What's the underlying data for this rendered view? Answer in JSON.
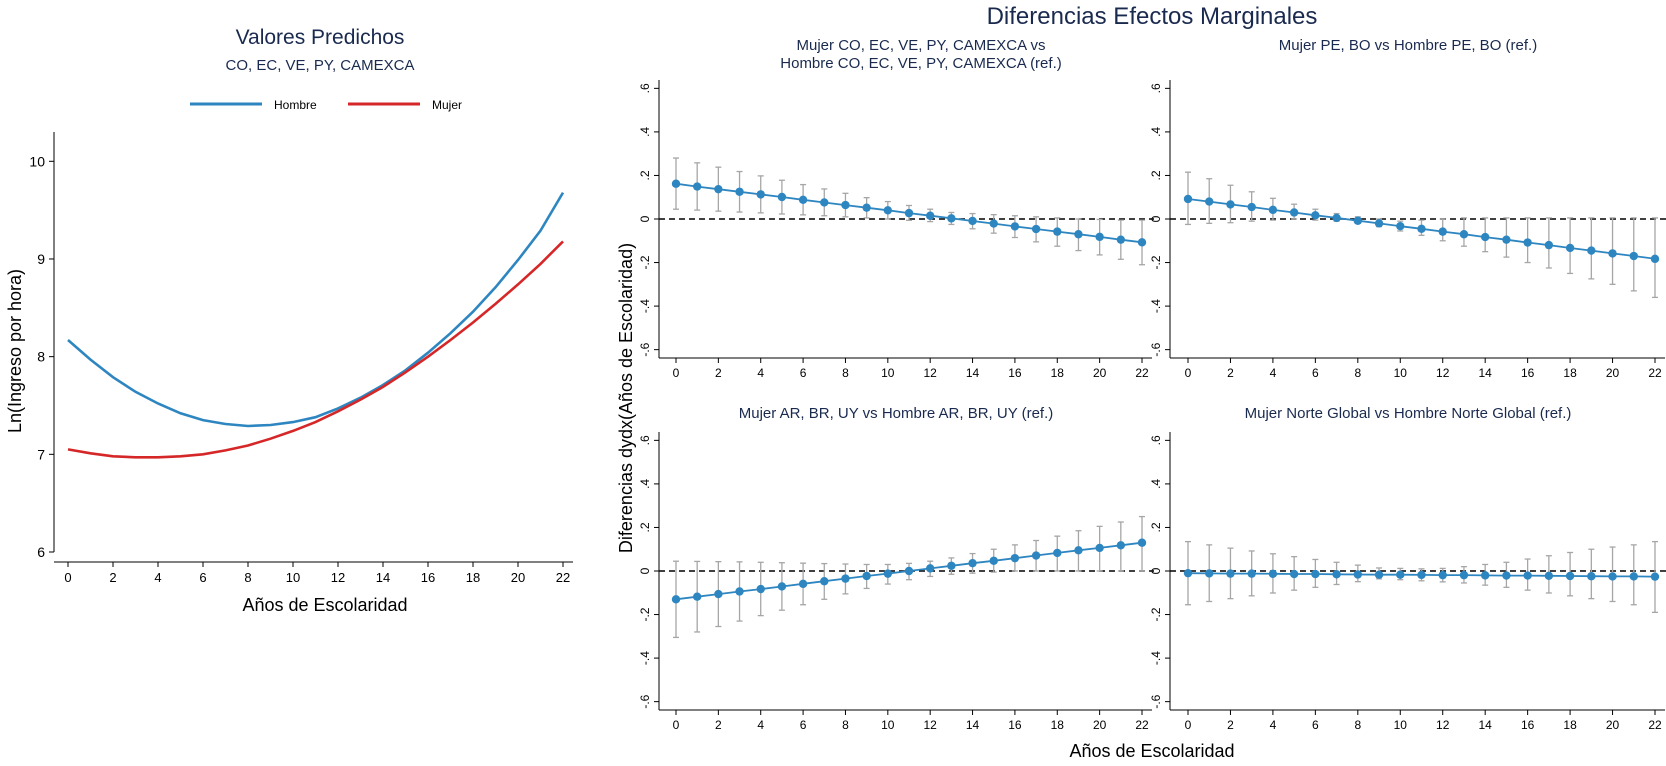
{
  "colors": {
    "hombre": "#2e86c1",
    "mujer": "#d62728",
    "marker": "#2e86c1",
    "ci": "#a6a6a6",
    "axis": "#000000",
    "title": "#1a2a4f"
  },
  "chart_data": [
    {
      "type": "line",
      "title": "Valores Predichos",
      "subtitle": "CO, EC, VE, PY, CAMEXCA",
      "xlabel": "Años de Escolaridad",
      "ylabel": "Ln(Ingreso por hora)",
      "xlim": [
        0,
        22
      ],
      "ylim": [
        6,
        10.3
      ],
      "xticks": [
        0,
        2,
        4,
        6,
        8,
        10,
        12,
        14,
        16,
        18,
        20,
        22
      ],
      "yticks": [
        6,
        7,
        8,
        9,
        10
      ],
      "legend": "top",
      "grid": false,
      "x": [
        0,
        1,
        2,
        3,
        4,
        5,
        6,
        7,
        8,
        9,
        10,
        11,
        12,
        13,
        14,
        15,
        16,
        17,
        18,
        19,
        20,
        21,
        22
      ],
      "series": [
        {
          "name": "Hombre",
          "color": "#2e86c1",
          "values": [
            8.17,
            7.97,
            7.79,
            7.64,
            7.52,
            7.42,
            7.35,
            7.31,
            7.29,
            7.3,
            7.33,
            7.38,
            7.47,
            7.58,
            7.71,
            7.86,
            8.04,
            8.24,
            8.46,
            8.71,
            8.99,
            9.29,
            9.68
          ]
        },
        {
          "name": "Mujer",
          "color": "#d62728",
          "values": [
            7.05,
            7.01,
            6.98,
            6.97,
            6.97,
            6.98,
            7.0,
            7.04,
            7.09,
            7.16,
            7.24,
            7.33,
            7.44,
            7.56,
            7.69,
            7.84,
            8.0,
            8.17,
            8.35,
            8.54,
            8.74,
            8.95,
            9.18
          ]
        }
      ]
    },
    {
      "type": "scatter",
      "title": "Mujer CO, EC, VE, PY, CAMEXCA vs",
      "title2": "Hombre CO, EC, VE, PY, CAMEXCA (ref.)",
      "xlim": [
        0,
        22
      ],
      "ylim": [
        -0.62,
        0.62
      ],
      "xticks": [
        0,
        2,
        4,
        6,
        8,
        10,
        12,
        14,
        16,
        18,
        20,
        22
      ],
      "yticks": [
        -0.6,
        -0.4,
        -0.2,
        0,
        0.2,
        0.4,
        0.6
      ],
      "ytick_labels": [
        "-.6",
        "-.4",
        "-.2",
        "0",
        ".2",
        ".4",
        ".6"
      ],
      "reference_line": 0,
      "x": [
        0,
        1,
        2,
        3,
        4,
        5,
        6,
        7,
        8,
        9,
        10,
        11,
        12,
        13,
        14,
        15,
        16,
        17,
        18,
        19,
        20,
        21,
        22
      ],
      "values": [
        0.162,
        0.149,
        0.137,
        0.125,
        0.113,
        0.101,
        0.088,
        0.076,
        0.064,
        0.052,
        0.04,
        0.027,
        0.015,
        0.003,
        -0.009,
        -0.021,
        -0.034,
        -0.046,
        -0.058,
        -0.07,
        -0.082,
        -0.095,
        -0.107
      ],
      "ci_low": [
        0.045,
        0.041,
        0.036,
        0.032,
        0.028,
        0.023,
        0.019,
        0.015,
        0.01,
        0.005,
        0.0,
        -0.006,
        -0.012,
        -0.025,
        -0.045,
        -0.065,
        -0.085,
        -0.105,
        -0.125,
        -0.145,
        -0.165,
        -0.185,
        -0.21
      ],
      "ci_high": [
        0.28,
        0.258,
        0.238,
        0.218,
        0.198,
        0.178,
        0.158,
        0.138,
        0.118,
        0.098,
        0.08,
        0.062,
        0.045,
        0.03,
        0.025,
        0.02,
        0.015,
        0.01,
        0.005,
        0.0,
        -0.002,
        -0.005,
        -0.005
      ]
    },
    {
      "type": "scatter",
      "title": "Mujer PE, BO vs Hombre PE, BO (ref.)",
      "xlim": [
        0,
        22
      ],
      "ylim": [
        -0.62,
        0.62
      ],
      "xticks": [
        0,
        2,
        4,
        6,
        8,
        10,
        12,
        14,
        16,
        18,
        20,
        22
      ],
      "yticks": [
        -0.6,
        -0.4,
        -0.2,
        0,
        0.2,
        0.4,
        0.6
      ],
      "ytick_labels": [
        "-.6",
        "-.4",
        "-.2",
        "0",
        ".2",
        ".4",
        ".6"
      ],
      "reference_line": 0,
      "x": [
        0,
        1,
        2,
        3,
        4,
        5,
        6,
        7,
        8,
        9,
        10,
        11,
        12,
        13,
        14,
        15,
        16,
        17,
        18,
        19,
        20,
        21,
        22
      ],
      "values": [
        0.092,
        0.08,
        0.067,
        0.055,
        0.042,
        0.03,
        0.017,
        0.005,
        -0.008,
        -0.02,
        -0.033,
        -0.045,
        -0.058,
        -0.07,
        -0.083,
        -0.095,
        -0.108,
        -0.12,
        -0.133,
        -0.145,
        -0.158,
        -0.17,
        -0.183
      ],
      "ci_low": [
        -0.025,
        -0.02,
        -0.017,
        -0.01,
        -0.005,
        0.0,
        -0.005,
        -0.01,
        -0.02,
        -0.035,
        -0.055,
        -0.075,
        -0.1,
        -0.125,
        -0.15,
        -0.175,
        -0.2,
        -0.225,
        -0.25,
        -0.275,
        -0.3,
        -0.33,
        -0.36
      ],
      "ci_high": [
        0.215,
        0.185,
        0.155,
        0.125,
        0.095,
        0.068,
        0.045,
        0.025,
        0.01,
        0.0,
        -0.01,
        -0.005,
        0.0,
        0.005,
        0.005,
        0.005,
        0.005,
        0.005,
        0.005,
        0.005,
        0.005,
        0.005,
        0.005
      ]
    },
    {
      "type": "scatter",
      "title": "Mujer AR, BR, UY vs Hombre AR, BR, UY (ref.)",
      "xlim": [
        0,
        22
      ],
      "ylim": [
        -0.62,
        0.62
      ],
      "xticks": [
        0,
        2,
        4,
        6,
        8,
        10,
        12,
        14,
        16,
        18,
        20,
        22
      ],
      "yticks": [
        -0.6,
        -0.4,
        -0.2,
        0,
        0.2,
        0.4,
        0.6
      ],
      "ytick_labels": [
        "-.6",
        "-.4",
        "-.2",
        "0",
        ".2",
        ".4",
        ".6"
      ],
      "reference_line": 0,
      "x": [
        0,
        1,
        2,
        3,
        4,
        5,
        6,
        7,
        8,
        9,
        10,
        11,
        12,
        13,
        14,
        15,
        16,
        17,
        18,
        19,
        20,
        21,
        22
      ],
      "values": [
        -0.13,
        -0.118,
        -0.106,
        -0.094,
        -0.083,
        -0.071,
        -0.059,
        -0.047,
        -0.035,
        -0.023,
        -0.012,
        0.0,
        0.012,
        0.024,
        0.036,
        0.047,
        0.059,
        0.071,
        0.083,
        0.095,
        0.106,
        0.118,
        0.13
      ],
      "ci_low": [
        -0.305,
        -0.28,
        -0.255,
        -0.23,
        -0.205,
        -0.18,
        -0.155,
        -0.13,
        -0.105,
        -0.08,
        -0.06,
        -0.04,
        -0.025,
        -0.015,
        -0.01,
        -0.005,
        0.0,
        0.0,
        0.0,
        0.0,
        0.0,
        0.0,
        0.0
      ],
      "ci_high": [
        0.045,
        0.044,
        0.043,
        0.042,
        0.04,
        0.038,
        0.036,
        0.034,
        0.032,
        0.03,
        0.03,
        0.035,
        0.045,
        0.06,
        0.08,
        0.1,
        0.12,
        0.14,
        0.16,
        0.185,
        0.205,
        0.225,
        0.25
      ]
    },
    {
      "type": "scatter",
      "title": "Mujer Norte Global vs Hombre Norte Global (ref.)",
      "xlim": [
        0,
        22
      ],
      "ylim": [
        -0.62,
        0.62
      ],
      "xticks": [
        0,
        2,
        4,
        6,
        8,
        10,
        12,
        14,
        16,
        18,
        20,
        22
      ],
      "yticks": [
        -0.6,
        -0.4,
        -0.2,
        0,
        0.2,
        0.4,
        0.6
      ],
      "ytick_labels": [
        "-.6",
        "-.4",
        "-.2",
        "0",
        ".2",
        ".4",
        ".6"
      ],
      "reference_line": 0,
      "x": [
        0,
        1,
        2,
        3,
        4,
        5,
        6,
        7,
        8,
        9,
        10,
        11,
        12,
        13,
        14,
        15,
        16,
        17,
        18,
        19,
        20,
        21,
        22
      ],
      "values": [
        -0.01,
        -0.011,
        -0.012,
        -0.012,
        -0.013,
        -0.014,
        -0.014,
        -0.015,
        -0.016,
        -0.017,
        -0.017,
        -0.018,
        -0.019,
        -0.019,
        -0.02,
        -0.021,
        -0.021,
        -0.022,
        -0.023,
        -0.024,
        -0.025,
        -0.025,
        -0.026
      ],
      "ci_low": [
        -0.155,
        -0.14,
        -0.127,
        -0.114,
        -0.101,
        -0.088,
        -0.075,
        -0.062,
        -0.049,
        -0.036,
        -0.04,
        -0.045,
        -0.05,
        -0.055,
        -0.065,
        -0.075,
        -0.088,
        -0.101,
        -0.114,
        -0.127,
        -0.14,
        -0.155,
        -0.19
      ],
      "ci_high": [
        0.135,
        0.12,
        0.105,
        0.092,
        0.079,
        0.066,
        0.053,
        0.04,
        0.027,
        0.014,
        0.012,
        0.01,
        0.012,
        0.02,
        0.03,
        0.04,
        0.055,
        0.07,
        0.085,
        0.1,
        0.11,
        0.12,
        0.135
      ]
    }
  ],
  "figure": {
    "main_title": "Diferencias Efectos Marginales",
    "shared_ylabel": "Diferencias dydx(Años de Escolaridad)",
    "shared_xlabel": "Años de Escolaridad"
  }
}
